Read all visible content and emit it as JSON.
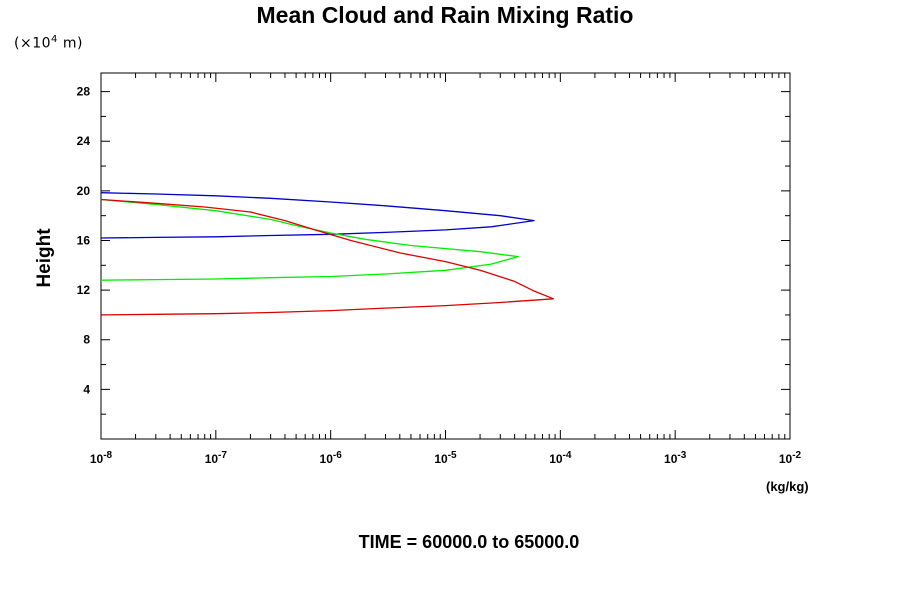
{
  "chart_data": {
    "type": "line",
    "title": "Mean Cloud and Rain Mixing Ratio",
    "y_unit_prefix": "(×10",
    "y_unit_exponent": "4",
    "y_unit_suffix": " m)",
    "ylabel": "Height",
    "xlabel": "(kg/kg)",
    "x_scale": "log",
    "xlim": [
      1e-08,
      0.01
    ],
    "ylim": [
      0,
      29.5
    ],
    "x_ticks": [
      {
        "base": "10",
        "exp": "-8",
        "value": 1e-08
      },
      {
        "base": "10",
        "exp": "-7",
        "value": 1e-07
      },
      {
        "base": "10",
        "exp": "-6",
        "value": 1e-06
      },
      {
        "base": "10",
        "exp": "-5",
        "value": 1e-05
      },
      {
        "base": "10",
        "exp": "-4",
        "value": 0.0001
      },
      {
        "base": "10",
        "exp": "-3",
        "value": 0.001
      },
      {
        "base": "10",
        "exp": "-2",
        "value": 0.01
      }
    ],
    "y_ticks": [
      "4",
      "8",
      "12",
      "16",
      "20",
      "24",
      "28"
    ],
    "grid": false,
    "series": [
      {
        "color": "#0000cc",
        "points": [
          [
            1e-08,
            16.2
          ],
          [
            3e-08,
            16.25
          ],
          [
            1e-07,
            16.3
          ],
          [
            3e-07,
            16.4
          ],
          [
            1e-06,
            16.5
          ],
          [
            3e-06,
            16.65
          ],
          [
            1e-05,
            16.85
          ],
          [
            2.5e-05,
            17.1
          ],
          [
            5.9e-05,
            17.6
          ],
          [
            3e-05,
            18.0
          ],
          [
            1e-05,
            18.4
          ],
          [
            3e-06,
            18.8
          ],
          [
            1e-06,
            19.1
          ],
          [
            3e-07,
            19.4
          ],
          [
            1e-07,
            19.6
          ],
          [
            3e-08,
            19.75
          ],
          [
            1e-08,
            19.85
          ]
        ]
      },
      {
        "color": "#00ee00",
        "points": [
          [
            1e-08,
            12.8
          ],
          [
            3e-08,
            12.85
          ],
          [
            1e-07,
            12.9
          ],
          [
            3e-07,
            13.0
          ],
          [
            1e-06,
            13.1
          ],
          [
            3e-06,
            13.3
          ],
          [
            1e-05,
            13.6
          ],
          [
            2.5e-05,
            14.1
          ],
          [
            4.3e-05,
            14.7
          ],
          [
            2e-05,
            15.1
          ],
          [
            5e-06,
            15.6
          ],
          [
            2e-06,
            16.1
          ],
          [
            1e-06,
            16.6
          ],
          [
            5e-07,
            17.2
          ],
          [
            3e-07,
            17.7
          ],
          [
            1e-07,
            18.4
          ],
          [
            3e-08,
            18.9
          ],
          [
            1e-08,
            19.3
          ]
        ]
      },
      {
        "color": "#dd0000",
        "points": [
          [
            1e-08,
            10.0
          ],
          [
            3e-08,
            10.05
          ],
          [
            1e-07,
            10.1
          ],
          [
            3e-07,
            10.2
          ],
          [
            1e-06,
            10.35
          ],
          [
            3e-06,
            10.55
          ],
          [
            1e-05,
            10.75
          ],
          [
            3e-05,
            11.0
          ],
          [
            8.7e-05,
            11.3
          ],
          [
            6e-05,
            11.9
          ],
          [
            4e-05,
            12.7
          ],
          [
            2e-05,
            13.6
          ],
          [
            1e-05,
            14.3
          ],
          [
            4e-06,
            15.0
          ],
          [
            1.5e-06,
            16.0
          ],
          [
            7e-07,
            16.9
          ],
          [
            4e-07,
            17.6
          ],
          [
            2e-07,
            18.3
          ],
          [
            8e-08,
            18.7
          ],
          [
            3e-08,
            19.0
          ],
          [
            1e-08,
            19.3
          ]
        ]
      }
    ]
  },
  "footer": {
    "time_label": "TIME = 60000.0 to 65000.0"
  }
}
